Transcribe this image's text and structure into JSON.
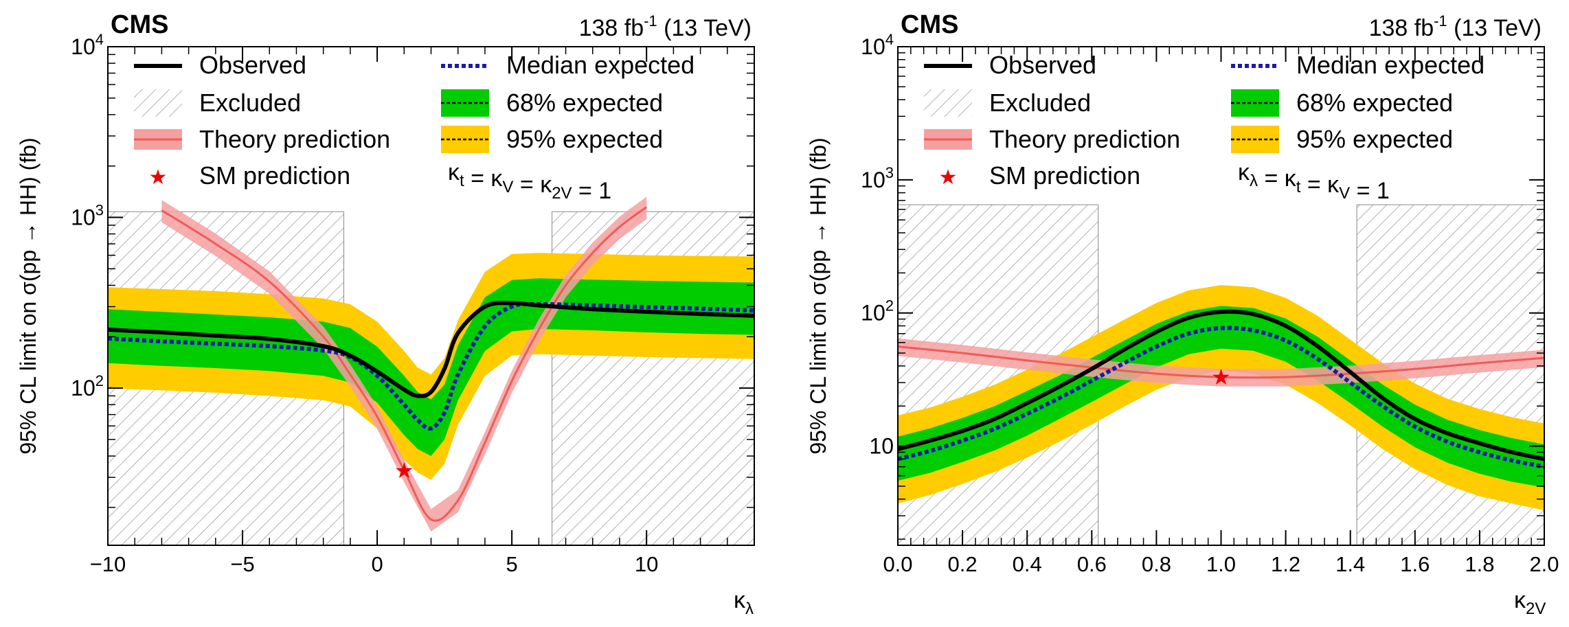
{
  "colors": {
    "observed": "#000000",
    "median": "#1a1ab0",
    "band68": "#00cc00",
    "band95": "#ffcc00",
    "theory": "#f05a5a",
    "theory_band": "#f5a0a0",
    "sm_star": "#ee0000",
    "hatch": "#9a9a9a"
  },
  "chart_data": [
    {
      "type": "line",
      "experiment": "CMS",
      "lumi": "138 fb",
      "lumi_exp": "-1",
      "energy": "(13 TeV)",
      "xlabel_main": "κ",
      "xlabel_sub": "λ",
      "ylabel": "95% CL limit on σ(pp → HH) (fb)",
      "yscale": "log",
      "xlim": [
        -10,
        14
      ],
      "ylim": [
        12,
        10000
      ],
      "xticks": [
        -10,
        -5,
        0,
        5,
        10
      ],
      "xtick_labels": [
        "−10",
        "−5",
        "0",
        "5",
        "10"
      ],
      "yticks": [
        {
          "value": 100,
          "base": "10",
          "exp": "2"
        },
        {
          "value": 1000,
          "base": "10",
          "exp": "3"
        },
        {
          "value": 10000,
          "base": "10",
          "exp": "4"
        }
      ],
      "constraint": "κt = κV = κ2V = 1",
      "constraint_parts": [
        {
          "sym": "κ",
          "sub": "t"
        },
        {
          "op": " = "
        },
        {
          "sym": "κ",
          "sub": "V"
        },
        {
          "op": " = "
        },
        {
          "sym": "κ",
          "sub": "2V"
        },
        {
          "op": " = 1"
        }
      ],
      "legend": {
        "observed": "Observed",
        "excluded": "Excluded",
        "theory": "Theory prediction",
        "sm": "SM prediction",
        "median": "Median expected",
        "band68": "68% expected",
        "band95": "95% expected"
      },
      "excluded_regions": [
        [
          -10,
          -1.24
        ],
        [
          6.49,
          14
        ]
      ],
      "excluded_ymax": 1080,
      "sm_point": {
        "x": 1,
        "y": 33
      },
      "x": [
        -10,
        -8,
        -6,
        -4,
        -2,
        -1,
        0,
        1,
        1.5,
        2,
        2.5,
        3,
        4,
        5,
        6,
        8,
        10,
        12,
        14
      ],
      "observed": [
        220,
        212,
        203,
        194,
        176,
        155,
        125,
        98,
        90,
        95,
        130,
        210,
        300,
        315,
        305,
        290,
        280,
        272,
        265
      ],
      "expected": [
        195,
        188,
        182,
        176,
        166,
        152,
        118,
        80,
        65,
        58,
        72,
        120,
        230,
        300,
        310,
        305,
        298,
        292,
        285
      ],
      "band68": {
        "lo": [
          140,
          135,
          131,
          126,
          118,
          108,
          82,
          53,
          44,
          40,
          50,
          85,
          165,
          215,
          222,
          218,
          212,
          208,
          205
        ],
        "hi": [
          290,
          280,
          270,
          260,
          245,
          225,
          175,
          118,
          95,
          86,
          105,
          178,
          340,
          430,
          440,
          432,
          425,
          420,
          415
        ]
      },
      "band95": {
        "lo": [
          100,
          97,
          94,
          90,
          85,
          78,
          58,
          38,
          32,
          29,
          36,
          61,
          118,
          155,
          158,
          155,
          152,
          150,
          148
        ],
        "hi": [
          390,
          380,
          370,
          355,
          335,
          310,
          245,
          165,
          132,
          120,
          150,
          250,
          480,
          610,
          620,
          610,
          600,
          595,
          590
        ]
      },
      "theory": {
        "x": [
          -8,
          -6,
          -4,
          -2,
          -1,
          0,
          1,
          2,
          3,
          4,
          5,
          6,
          7,
          8,
          9,
          10
        ],
        "y": [
          1100,
          700,
          420,
          200,
          120,
          68,
          33,
          17,
          22,
          48,
          110,
          220,
          400,
          620,
          880,
          1150
        ]
      }
    },
    {
      "type": "line",
      "experiment": "CMS",
      "lumi": "138 fb",
      "lumi_exp": "-1",
      "energy": "(13 TeV)",
      "xlabel_main": "κ",
      "xlabel_sub": "2V",
      "ylabel": "95% CL limit on σ(pp → HH) (fb)",
      "yscale": "log",
      "xlim": [
        0,
        2
      ],
      "ylim": [
        1.8,
        10000
      ],
      "xticks": [
        0,
        0.2,
        0.4,
        0.6,
        0.8,
        1.0,
        1.2,
        1.4,
        1.6,
        1.8,
        2.0
      ],
      "xtick_labels": [
        "0.0",
        "0.2",
        "0.4",
        "0.6",
        "0.8",
        "1.0",
        "1.2",
        "1.4",
        "1.6",
        "1.8",
        "2.0"
      ],
      "yticks": [
        {
          "value": 10,
          "base": "10",
          "exp": ""
        },
        {
          "value": 100,
          "base": "10",
          "exp": "2"
        },
        {
          "value": 1000,
          "base": "10",
          "exp": "3"
        },
        {
          "value": 10000,
          "base": "10",
          "exp": "4"
        }
      ],
      "constraint": "κλ = κt = κV = 1",
      "constraint_parts": [
        {
          "sym": "κ",
          "sub": "λ"
        },
        {
          "op": " = "
        },
        {
          "sym": "κ",
          "sub": "t"
        },
        {
          "op": " = "
        },
        {
          "sym": "κ",
          "sub": "V"
        },
        {
          "op": " = 1"
        }
      ],
      "legend": {
        "observed": "Observed",
        "excluded": "Excluded",
        "theory": "Theory prediction",
        "sm": "SM prediction",
        "median": "Median expected",
        "band68": "68% expected",
        "band95": "95% expected"
      },
      "excluded_regions": [
        [
          0,
          0.62
        ],
        [
          1.42,
          2
        ]
      ],
      "excluded_ymax": 650,
      "sm_point": {
        "x": 1,
        "y": 33
      },
      "x": [
        0,
        0.1,
        0.2,
        0.3,
        0.4,
        0.5,
        0.6,
        0.7,
        0.8,
        0.9,
        1.0,
        1.1,
        1.2,
        1.3,
        1.4,
        1.5,
        1.6,
        1.7,
        1.8,
        1.9,
        2.0
      ],
      "observed": [
        9.5,
        11,
        13,
        16,
        21,
        28,
        38,
        53,
        72,
        92,
        102,
        98,
        80,
        56,
        36,
        23,
        16,
        12.5,
        10.5,
        9,
        8
      ],
      "expected": [
        8,
        9.2,
        11,
        13.5,
        17.5,
        23,
        31,
        42,
        56,
        70,
        77,
        74,
        62,
        45,
        30,
        20,
        14,
        10.8,
        9,
        7.8,
        7
      ],
      "band68": {
        "lo": [
          5.5,
          6.3,
          7.6,
          9.3,
          12,
          16,
          21.5,
          29,
          39,
          49,
          54,
          52,
          43,
          31,
          21,
          14,
          9.8,
          7.5,
          6.2,
          5.4,
          4.9
        ],
        "hi": [
          11.8,
          13.6,
          16.3,
          20,
          26,
          34,
          46,
          62,
          83,
          103,
          113,
          109,
          91,
          66,
          44,
          29,
          20.5,
          15.8,
          13.2,
          11.5,
          10.3
        ]
      },
      "band95": {
        "lo": [
          3.7,
          4.3,
          5.2,
          6.4,
          8.2,
          10.8,
          14.5,
          19.8,
          26.5,
          33,
          37,
          35,
          29,
          21,
          14.3,
          9.5,
          6.7,
          5.1,
          4.2,
          3.7,
          3.3
        ],
        "hi": [
          17,
          19.5,
          23.5,
          29,
          37.5,
          49,
          66,
          89,
          119,
          148,
          162,
          156,
          130,
          95,
          63,
          42,
          29.5,
          22.7,
          19,
          16.5,
          14.8
        ]
      },
      "theory": {
        "x": [
          0,
          0.2,
          0.4,
          0.6,
          0.8,
          1.0,
          1.2,
          1.4,
          1.6,
          1.8,
          2.0
        ],
        "y": [
          56,
          50,
          44,
          39,
          35,
          33,
          33,
          35,
          38,
          42,
          46
        ]
      }
    }
  ]
}
